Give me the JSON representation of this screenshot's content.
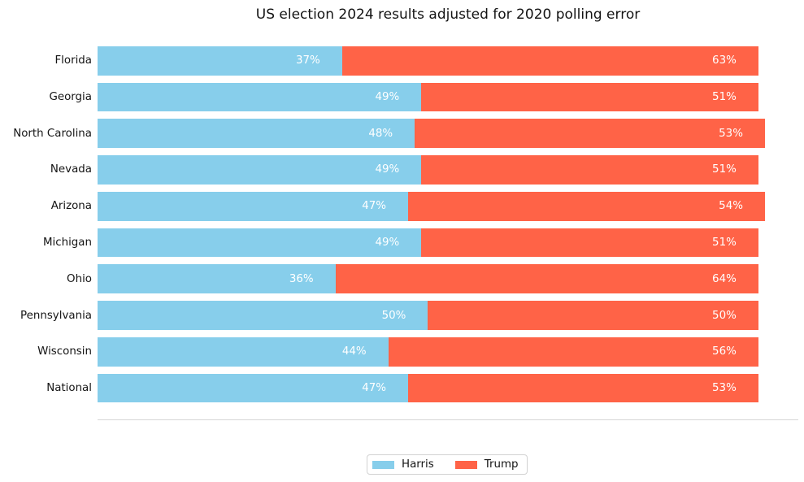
{
  "chart_data": {
    "type": "bar",
    "orientation": "horizontal",
    "stacked": true,
    "title": "US election 2024 results adjusted for 2020 polling error",
    "categories": [
      "Florida",
      "Georgia",
      "North Carolina",
      "Nevada",
      "Arizona",
      "Michigan",
      "Ohio",
      "Pennsylvania",
      "Wisconsin",
      "National"
    ],
    "series": [
      {
        "name": "Harris",
        "color": "#87CEEB",
        "values": [
          37,
          49,
          48,
          49,
          47,
          49,
          36,
          50,
          44,
          47
        ]
      },
      {
        "name": "Trump",
        "color": "#FF6347",
        "values": [
          63,
          51,
          53,
          51,
          54,
          51,
          64,
          50,
          56,
          53
        ]
      }
    ],
    "value_label_suffix": "%",
    "value_label_color": "#ffffff",
    "xlim": [
      0,
      106.05
    ],
    "grid": false,
    "axis_line_color": "#d6d6d6",
    "legend_position": "bottom-center"
  },
  "legend": {
    "items": [
      {
        "label": "Harris",
        "color": "#87CEEB"
      },
      {
        "label": "Trump",
        "color": "#FF6347"
      }
    ]
  }
}
